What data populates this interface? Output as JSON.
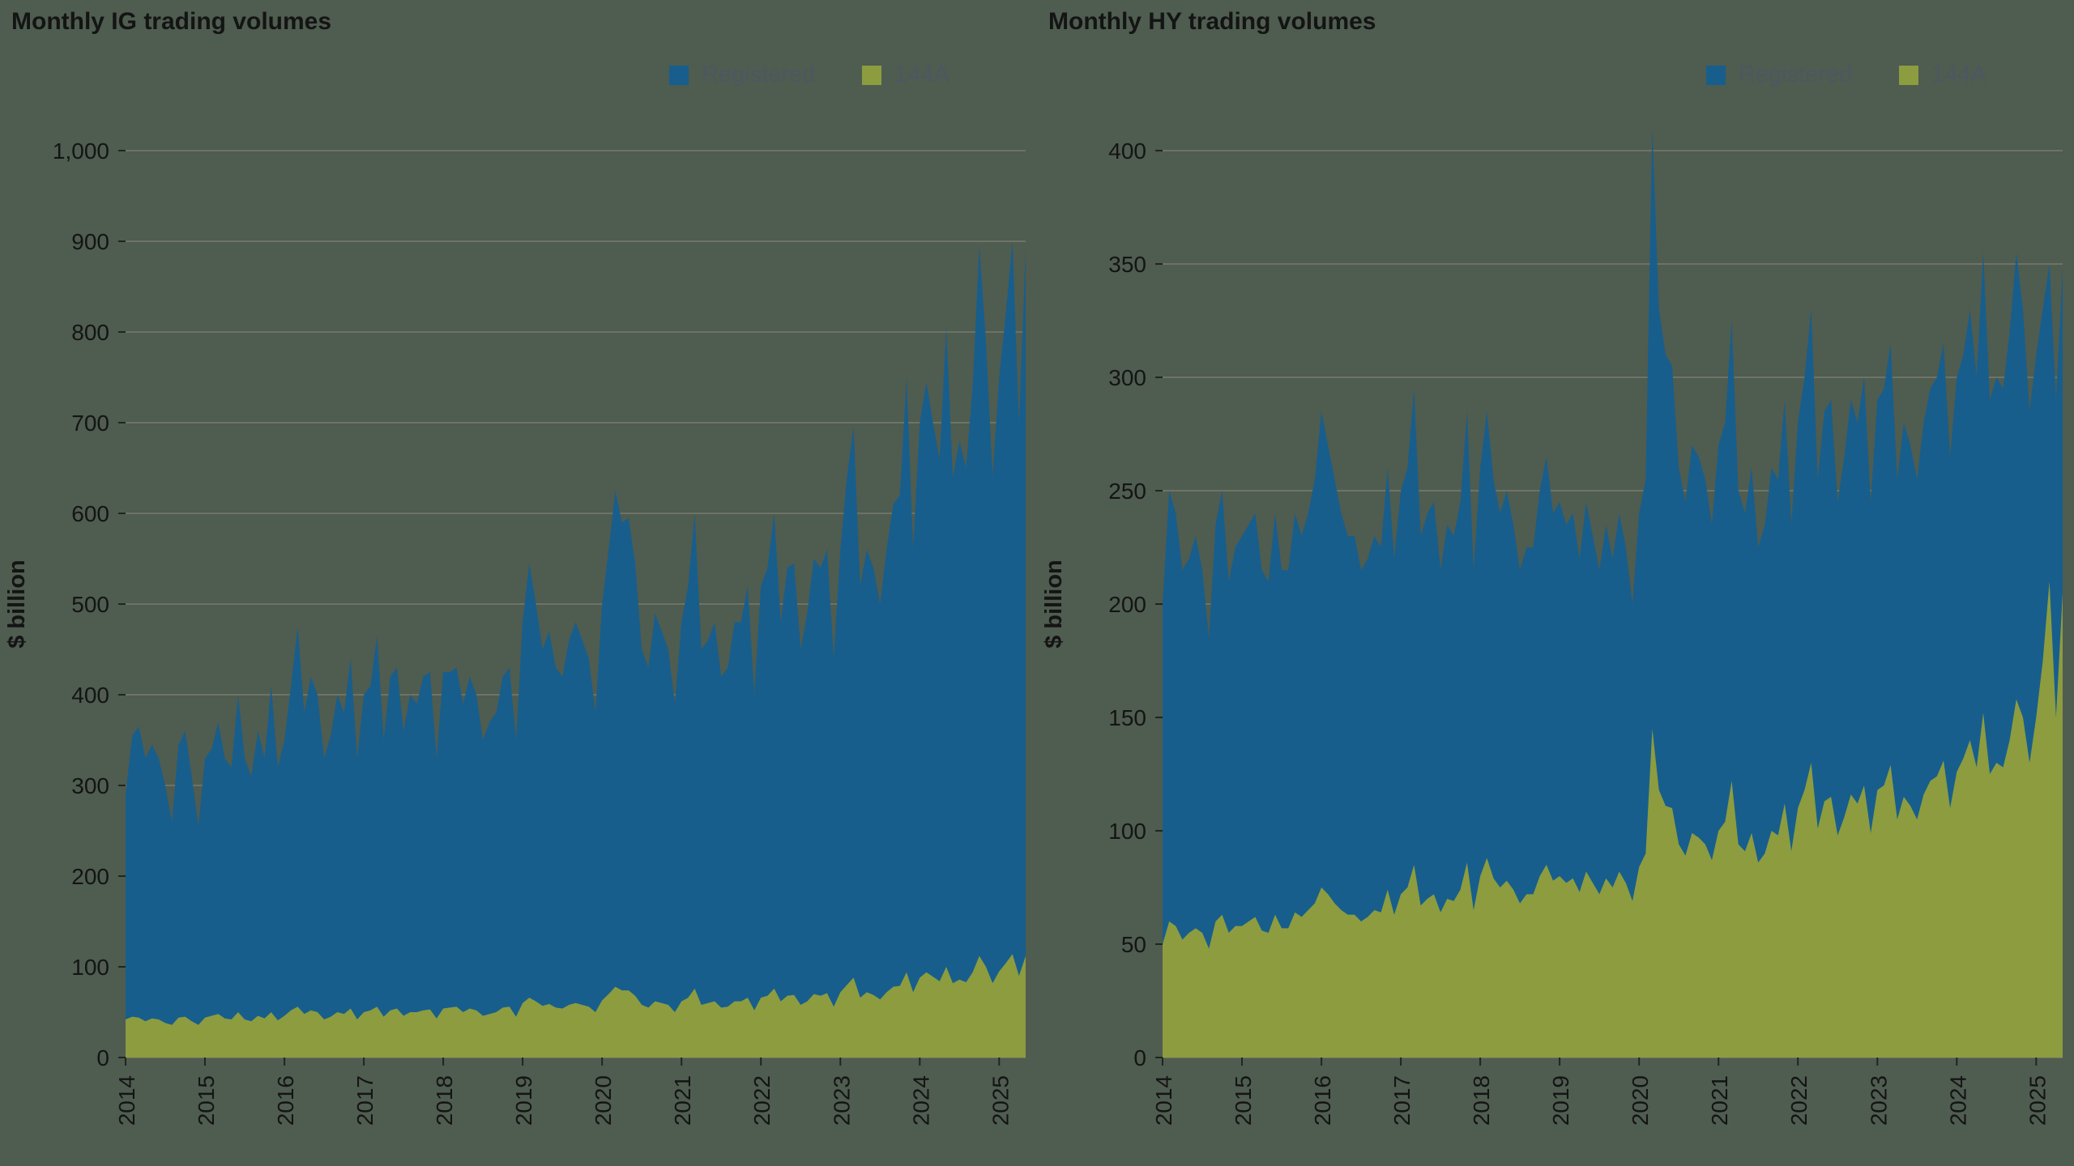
{
  "page": {
    "background": "#4f5c50"
  },
  "chart_data": [
    {
      "type": "area",
      "stacked": true,
      "title": "Monthly IG trading volumes",
      "ylabel": "$ billion",
      "ylim": [
        0,
        1000
      ],
      "y_ticks": [
        0,
        100,
        200,
        300,
        400,
        500,
        600,
        700,
        800,
        900,
        1000
      ],
      "x_freq": "monthly",
      "x_start": "2014-01",
      "x_tick_labels": [
        "2014",
        "2015",
        "2016",
        "2017",
        "2018",
        "2019",
        "2020",
        "2021",
        "2022",
        "2023",
        "2024",
        "2025"
      ],
      "grid": "horizontal",
      "legend_position": "top-right",
      "series": [
        {
          "name": "Registered",
          "color": "#175e8d",
          "values": [
            248,
            310,
            321,
            290,
            302,
            288,
            262,
            224,
            301,
            315,
            270,
            219,
            286,
            294,
            322,
            287,
            278,
            350,
            288,
            270,
            314,
            287,
            360,
            279,
            304,
            358,
            419,
            332,
            368,
            350,
            288,
            310,
            350,
            332,
            386,
            288,
            350,
            358,
            409,
            305,
            368,
            376,
            314,
            350,
            340,
            368,
            372,
            287,
            371,
            370,
            374,
            340,
            366,
            348,
            304,
            322,
            330,
            365,
            374,
            305,
            420,
            479,
            438,
            393,
            411,
            375,
            366,
            402,
            420,
            402,
            384,
            330,
            437,
            490,
            547,
            516,
            521,
            477,
            392,
            375,
            428,
            410,
            392,
            340,
            418,
            454,
            524,
            392,
            400,
            418,
            365,
            374,
            418,
            418,
            454,
            348,
            454,
            472,
            524,
            418,
            472,
            476,
            392,
            428,
            480,
            472,
            489,
            384,
            488,
            560,
            607,
            454,
            488,
            471,
            436,
            488,
            532,
            541,
            656,
            488,
            612,
            651,
            611,
            576,
            705,
            558,
            594,
            567,
            646,
            783,
            690,
            558,
            655,
            716,
            786,
            610,
            778
          ]
        },
        {
          "name": "144A",
          "color": "#8c9c3f",
          "values": [
            42,
            45,
            44,
            40,
            43,
            42,
            38,
            36,
            44,
            45,
            40,
            36,
            44,
            46,
            48,
            43,
            42,
            50,
            42,
            40,
            46,
            43,
            50,
            41,
            46,
            52,
            56,
            48,
            52,
            50,
            42,
            45,
            50,
            48,
            54,
            42,
            50,
            52,
            56,
            45,
            52,
            54,
            46,
            50,
            50,
            52,
            53,
            43,
            54,
            55,
            56,
            50,
            54,
            52,
            46,
            48,
            50,
            55,
            56,
            45,
            60,
            66,
            62,
            57,
            59,
            55,
            54,
            58,
            60,
            58,
            56,
            50,
            63,
            70,
            78,
            74,
            74,
            68,
            58,
            55,
            62,
            60,
            58,
            50,
            62,
            66,
            76,
            58,
            60,
            62,
            55,
            56,
            62,
            62,
            66,
            52,
            66,
            68,
            76,
            62,
            68,
            69,
            58,
            62,
            70,
            68,
            71,
            56,
            72,
            80,
            88,
            66,
            72,
            69,
            64,
            72,
            78,
            79,
            94,
            72,
            88,
            94,
            89,
            84,
            100,
            82,
            86,
            83,
            94,
            112,
            100,
            82,
            95,
            104,
            114,
            90,
            112
          ]
        }
      ]
    },
    {
      "type": "area",
      "stacked": true,
      "title": "Monthly HY trading volumes",
      "ylabel": "$ billion",
      "ylim": [
        0,
        400
      ],
      "y_ticks": [
        0,
        50,
        100,
        150,
        200,
        250,
        300,
        350,
        400
      ],
      "x_freq": "monthly",
      "x_start": "2014-01",
      "x_tick_labels": [
        "2014",
        "2015",
        "2016",
        "2017",
        "2018",
        "2019",
        "2020",
        "2021",
        "2022",
        "2023",
        "2024",
        "2025"
      ],
      "grid": "horizontal",
      "legend_position": "top-right",
      "series": [
        {
          "name": "Registered",
          "color": "#175e8d",
          "values": [
            150,
            190,
            182,
            163,
            165,
            173,
            160,
            137,
            175,
            187,
            155,
            167,
            172,
            175,
            178,
            159,
            155,
            177,
            158,
            158,
            176,
            168,
            175,
            187,
            210,
            198,
            187,
            175,
            167,
            167,
            155,
            158,
            165,
            161,
            186,
            157,
            178,
            185,
            210,
            163,
            170,
            173,
            151,
            165,
            161,
            171,
            199,
            150,
            180,
            197,
            176,
            165,
            172,
            161,
            147,
            153,
            153,
            170,
            180,
            162,
            165,
            158,
            161,
            147,
            163,
            153,
            143,
            156,
            145,
            158,
            148,
            131,
            156,
            165,
            265,
            212,
            199,
            195,
            166,
            156,
            171,
            168,
            161,
            148,
            170,
            176,
            203,
            156,
            149,
            161,
            139,
            145,
            160,
            157,
            178,
            144,
            170,
            182,
            200,
            154,
            172,
            175,
            147,
            159,
            174,
            168,
            180,
            146,
            172,
            175,
            186,
            150,
            165,
            159,
            150,
            164,
            173,
            176,
            184,
            155,
            174,
            178,
            190,
            172,
            203,
            165,
            170,
            167,
            180,
            197,
            180,
            155,
            160,
            155,
            140,
            140,
            143
          ]
        },
        {
          "name": "144A",
          "color": "#8c9c3f",
          "values": [
            50,
            60,
            58,
            52,
            55,
            57,
            55,
            48,
            60,
            63,
            55,
            58,
            58,
            60,
            62,
            56,
            55,
            63,
            57,
            57,
            64,
            62,
            65,
            68,
            75,
            72,
            68,
            65,
            63,
            63,
            60,
            62,
            65,
            64,
            74,
            63,
            72,
            75,
            85,
            67,
            70,
            72,
            64,
            70,
            69,
            74,
            86,
            65,
            80,
            88,
            79,
            75,
            78,
            74,
            68,
            72,
            72,
            80,
            85,
            78,
            80,
            77,
            79,
            73,
            82,
            77,
            72,
            79,
            75,
            82,
            77,
            69,
            84,
            90,
            145,
            118,
            111,
            110,
            94,
            89,
            99,
            97,
            94,
            87,
            100,
            104,
            122,
            94,
            91,
            99,
            86,
            90,
            100,
            98,
            112,
            91,
            110,
            118,
            130,
            101,
            113,
            115,
            98,
            106,
            116,
            112,
            120,
            99,
            118,
            120,
            129,
            105,
            115,
            111,
            105,
            116,
            122,
            124,
            131,
            110,
            126,
            132,
            140,
            128,
            152,
            125,
            130,
            128,
            140,
            158,
            150,
            130,
            150,
            175,
            210,
            150,
            205
          ]
        }
      ]
    }
  ]
}
